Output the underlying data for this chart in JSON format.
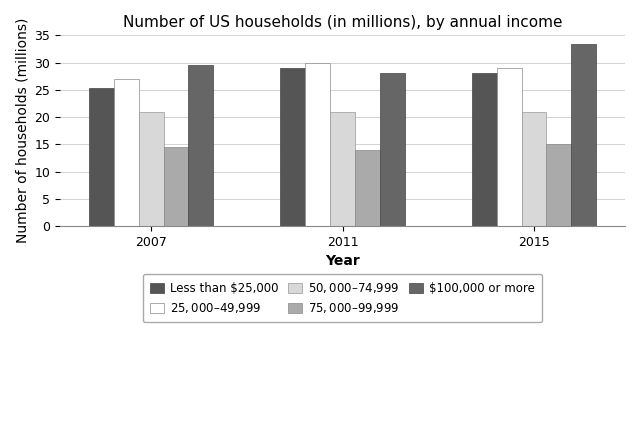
{
  "title": "Number of US households (in millions), by annual income",
  "xlabel": "Year",
  "ylabel": "Number of households (millions)",
  "years": [
    "2007",
    "2011",
    "2015"
  ],
  "categories": [
    "Less than $25,000",
    "$25,000–$49,999",
    "$50,000–$74,999",
    "$75,000–$99,999",
    "$100,000 or more"
  ],
  "values": {
    "Less than $25,000": [
      25.3,
      29.0,
      28.0
    ],
    "$25,000–$49,999": [
      27.0,
      30.0,
      29.0
    ],
    "$50,000–$74,999": [
      21.0,
      21.0,
      21.0
    ],
    "$75,000–$99,999": [
      14.5,
      14.0,
      15.0
    ],
    "$100,000 or more": [
      29.5,
      28.0,
      33.5
    ]
  },
  "colors": {
    "Less than $25,000": "#555555",
    "$25,000–$49,999": "#ffffff",
    "$50,000–$74,999": "#d8d8d8",
    "$75,000–$99,999": "#aaaaaa",
    "$100,000 or more": "#666666"
  },
  "edgecolors": {
    "Less than $25,000": "#444444",
    "$25,000–$49,999": "#888888",
    "$50,000–$74,999": "#999999",
    "$75,000–$99,999": "#888888",
    "$100,000 or more": "#444444"
  },
  "ylim": [
    0,
    35
  ],
  "yticks": [
    0,
    5,
    10,
    15,
    20,
    25,
    30,
    35
  ],
  "background_color": "#ffffff",
  "title_fontsize": 11,
  "axis_label_fontsize": 10,
  "tick_fontsize": 9,
  "legend_fontsize": 8.5,
  "bar_width": 0.13,
  "group_centers": [
    0.42,
    1.42,
    2.42
  ]
}
